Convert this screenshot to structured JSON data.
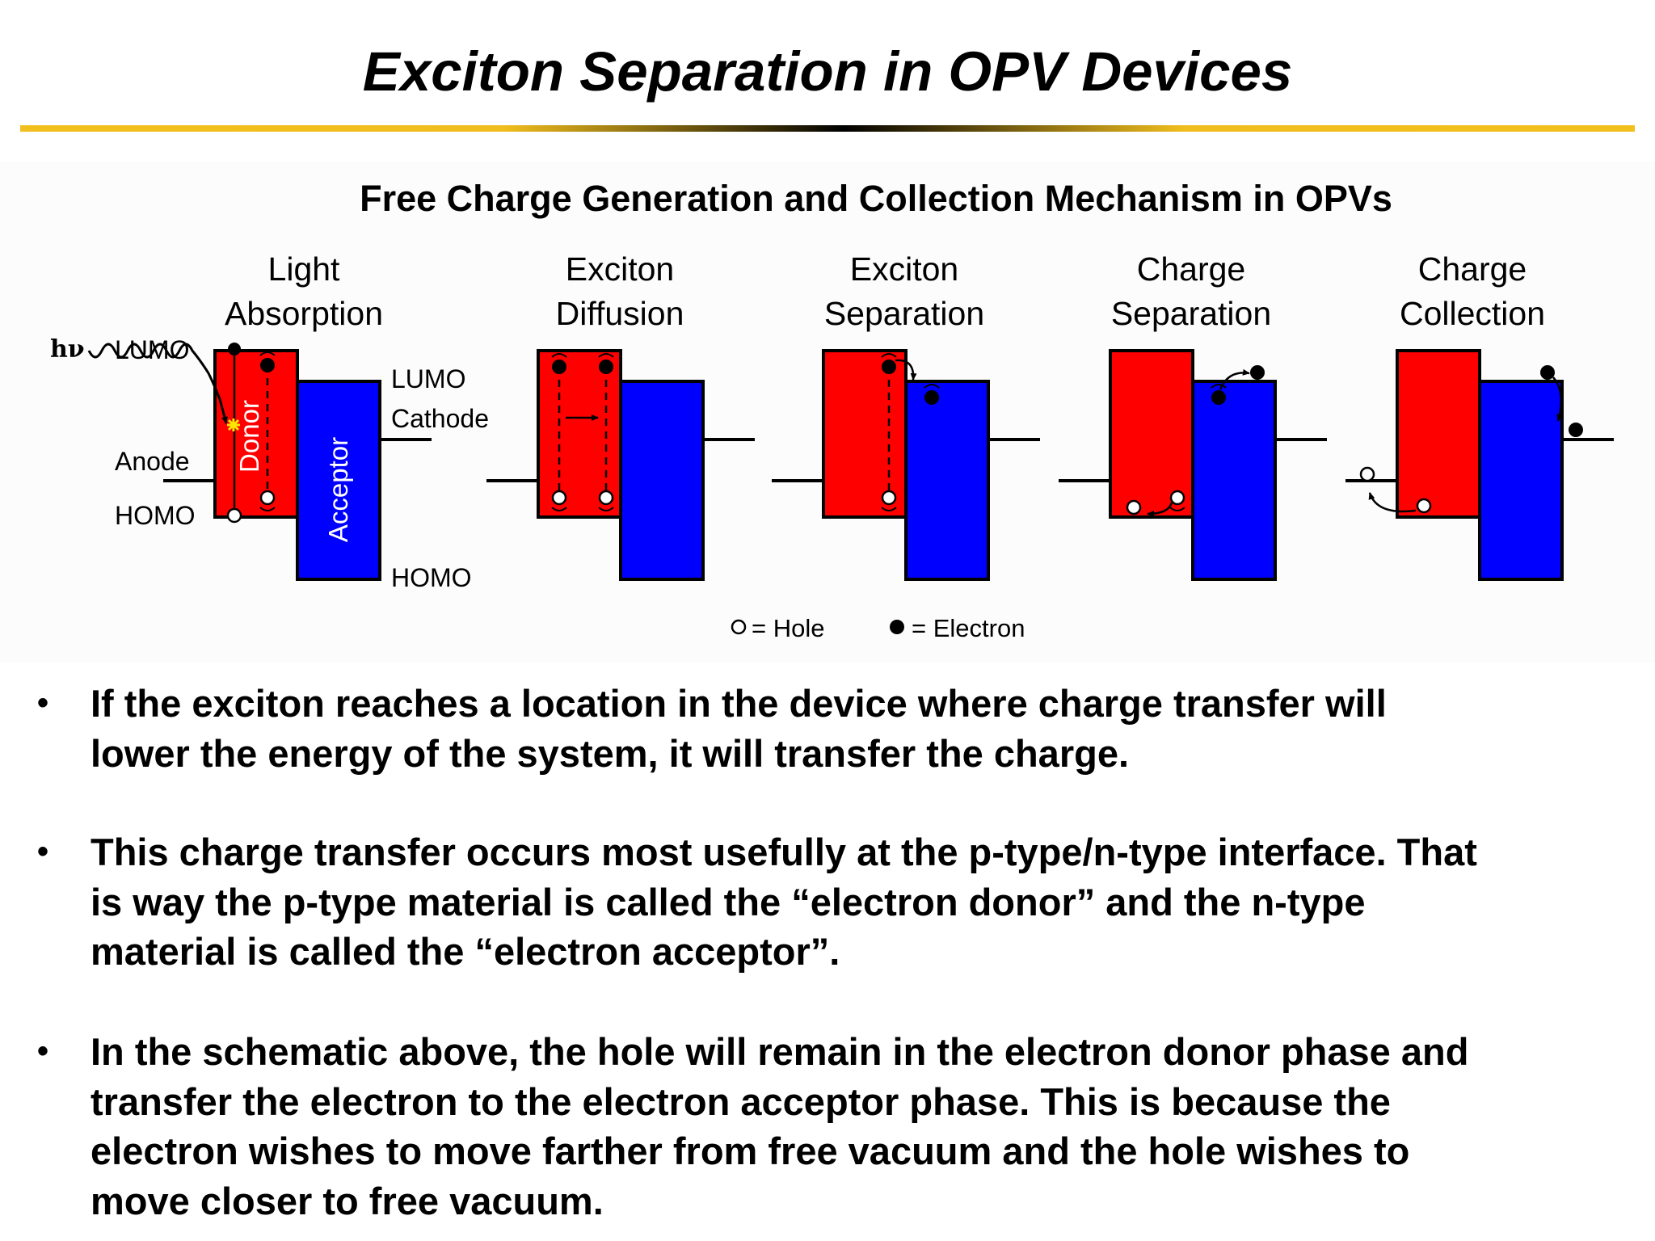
{
  "slide": {
    "title": "Exciton Separation in OPV Devices",
    "accent_colors": {
      "gold": "#f2c01e",
      "donor_red": "#ff0000",
      "acceptor_blue": "#0000ff",
      "star_yellow": "#ffe600"
    }
  },
  "figure": {
    "title": "Free Charge Generation and Collection Mechanism in OPVs",
    "stages": [
      {
        "line1": "Light",
        "line2": "Absorption"
      },
      {
        "line1": "Exciton",
        "line2": "Diffusion"
      },
      {
        "line1": "Exciton",
        "line2": "Separation"
      },
      {
        "line1": "Charge",
        "line2": "Separation"
      },
      {
        "line1": "Charge",
        "line2": "Collection"
      }
    ],
    "labels": {
      "photon": "hν",
      "donor_lumo": "LUMO",
      "acceptor_lumo": "LUMO",
      "cathode": "Cathode",
      "anode": "Anode",
      "donor_homo": "HOMO",
      "acceptor_homo": "HOMO",
      "donor": "Donor",
      "acceptor": "Acceptor"
    },
    "legend": {
      "hole": "= Hole",
      "electron": "= Electron"
    }
  },
  "bullets": [
    {
      "lines": [
        "If the exciton reaches a location in the device where charge transfer will",
        "lower the energy of the system, it will transfer the charge."
      ]
    },
    {
      "lines": [
        "This charge transfer occurs most usefully at the p-type/n-type interface.  That",
        "is way the p-type material is called the “electron donor” and the n-type",
        "material is called the “electron acceptor”."
      ]
    },
    {
      "lines": [
        "In the schematic above, the hole will remain in the electron donor phase and",
        "transfer the electron to the electron acceptor phase.  This is because the",
        "electron wishes to move farther from free vacuum and the hole wishes to",
        "move closer to free vacuum."
      ]
    }
  ]
}
